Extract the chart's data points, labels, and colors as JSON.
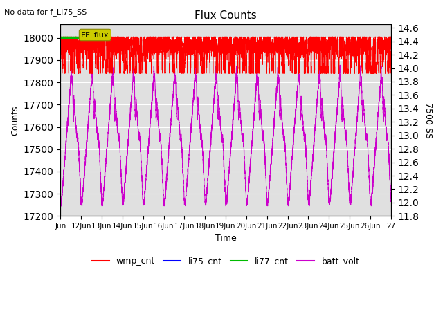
{
  "title": "Flux Counts",
  "no_data_text": "No data for f_Li75_SS",
  "xlabel": "Time",
  "ylabel_left": "Counts",
  "ylabel_right": "7500 SS",
  "ylim_left": [
    17200,
    18060
  ],
  "ylim_right": [
    11.8,
    14.65
  ],
  "yticks_left": [
    17200,
    17300,
    17400,
    17500,
    17600,
    17700,
    17800,
    17900,
    18000
  ],
  "yticks_right": [
    11.8,
    12.0,
    12.2,
    12.4,
    12.6,
    12.8,
    13.0,
    13.2,
    13.4,
    13.6,
    13.8,
    14.0,
    14.2,
    14.4,
    14.6
  ],
  "xtick_labels": [
    "Jun",
    "12Jun",
    "13Jun",
    "14Jun",
    "15Jun",
    "16Jun",
    "17Jun",
    "18Jun",
    "19Jun",
    "20Jun",
    "21Jun",
    "22Jun",
    "23Jun",
    "24Jun",
    "25Jun",
    "26Jun",
    "27"
  ],
  "wmp_color": "#ff0000",
  "li75_color": "#0000ff",
  "li77_color": "#00bb00",
  "batt_color": "#cc00cc",
  "ee_flux_box_color": "#cccc00",
  "ee_flux_text": "EE_flux",
  "bg_color": "#e0e0e0",
  "legend_labels": [
    "wmp_cnt",
    "li75_cnt",
    "li77_cnt",
    "batt_volt"
  ],
  "r_min": 11.8,
  "r_max": 14.65,
  "l_min": 17200,
  "l_max": 18060
}
